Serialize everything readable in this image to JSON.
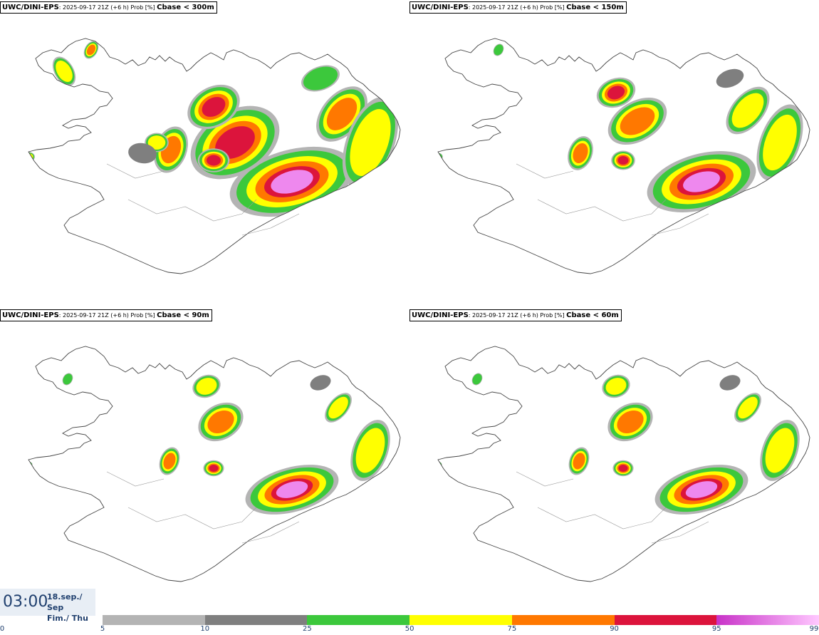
{
  "panels": [
    {
      "model": "UWC/DINI-EPS",
      "run": ": 2025-09-17 21Z (+6 h) Prob [%] ",
      "threshold": "Cbase < 300m",
      "coverage": "high"
    },
    {
      "model": "UWC/DINI-EPS",
      "run": ": 2025-09-17 21Z (+6 h) Prob [%] ",
      "threshold": "Cbase < 150m",
      "coverage": "medium"
    },
    {
      "model": "UWC/DINI-EPS",
      "run": ": 2025-09-17 21Z (+6 h) Prob [%] ",
      "threshold": "Cbase < 90m",
      "coverage": "low"
    },
    {
      "model": "UWC/DINI-EPS",
      "run": ": 2025-09-17 21Z (+6 h) Prob [%] ",
      "threshold": "Cbase < 60m",
      "coverage": "low"
    }
  ],
  "valid_time": {
    "time": "03:00",
    "date_line1": "18.sep./ Sep",
    "date_line2": "Fim./ Thu"
  },
  "colorbar": {
    "zero_label": "0",
    "segments": [
      {
        "from": 5,
        "to": 10,
        "color": "#b4b4b4"
      },
      {
        "from": 10,
        "to": 25,
        "color": "#7f7f7f"
      },
      {
        "from": 25,
        "to": 50,
        "color": "#3cc83c"
      },
      {
        "from": 50,
        "to": 75,
        "color": "#ffff00"
      },
      {
        "from": 75,
        "to": 90,
        "color": "#ff7800"
      },
      {
        "from": 90,
        "to": 95,
        "color": "#dc143c"
      },
      {
        "from": 95,
        "to": 99,
        "color": "#c832c8",
        "color_end": "#ffc8ff"
      }
    ],
    "ticks": [
      "5",
      "10",
      "25",
      "50",
      "75",
      "90",
      "95",
      "99"
    ]
  }
}
